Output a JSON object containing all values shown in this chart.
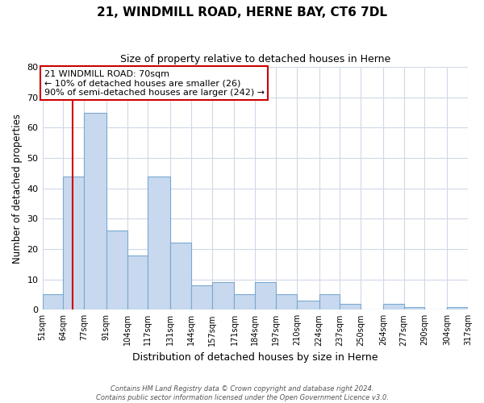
{
  "title": "21, WINDMILL ROAD, HERNE BAY, CT6 7DL",
  "subtitle": "Size of property relative to detached houses in Herne",
  "xlabel": "Distribution of detached houses by size in Herne",
  "ylabel": "Number of detached properties",
  "bar_color": "#c8d8ee",
  "bar_edge_color": "#7aaad0",
  "marker_color": "#cc0000",
  "marker_value": 70,
  "bins": [
    51,
    64,
    77,
    91,
    104,
    117,
    131,
    144,
    157,
    171,
    184,
    197,
    210,
    224,
    237,
    250,
    264,
    277,
    290,
    304,
    317
  ],
  "counts": [
    5,
    44,
    65,
    26,
    18,
    44,
    22,
    8,
    9,
    5,
    9,
    5,
    3,
    5,
    2,
    0,
    2,
    1,
    0,
    1
  ],
  "tick_labels": [
    "51sqm",
    "64sqm",
    "77sqm",
    "91sqm",
    "104sqm",
    "117sqm",
    "131sqm",
    "144sqm",
    "157sqm",
    "171sqm",
    "184sqm",
    "197sqm",
    "210sqm",
    "224sqm",
    "237sqm",
    "250sqm",
    "264sqm",
    "277sqm",
    "290sqm",
    "304sqm",
    "317sqm"
  ],
  "ylim": [
    0,
    80
  ],
  "yticks": [
    0,
    10,
    20,
    30,
    40,
    50,
    60,
    70,
    80
  ],
  "annotation_title": "21 WINDMILL ROAD: 70sqm",
  "annotation_line1": "← 10% of detached houses are smaller (26)",
  "annotation_line2": "90% of semi-detached houses are larger (242) →",
  "footnote1": "Contains HM Land Registry data © Crown copyright and database right 2024.",
  "footnote2": "Contains public sector information licensed under the Open Government Licence v3.0.",
  "background_color": "#ffffff",
  "grid_color": "#d0d8e8"
}
